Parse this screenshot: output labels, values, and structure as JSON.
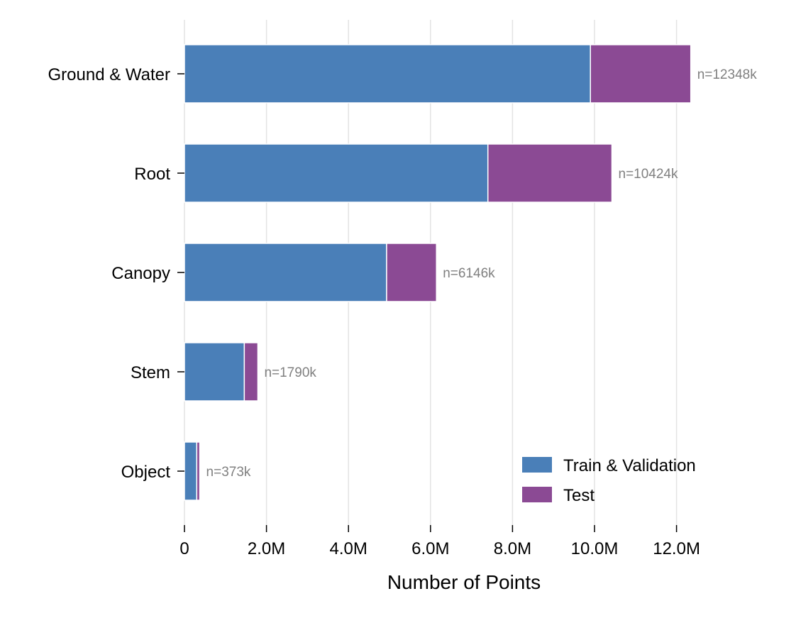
{
  "chart_data": {
    "type": "bar",
    "orientation": "horizontal",
    "stacked": true,
    "title": "",
    "xlabel": "Number of Points",
    "ylabel": "",
    "xlim": [
      0,
      12800000
    ],
    "grid": "vertical",
    "categories": [
      "Ground & Water",
      "Root",
      "Canopy",
      "Stem",
      "Object"
    ],
    "series": [
      {
        "name": "Train & Validation",
        "color": "#4a7fb8",
        "values": [
          9900000,
          7400000,
          4930000,
          1460000,
          300000
        ]
      },
      {
        "name": "Test",
        "color": "#8b4a94",
        "values": [
          2448000,
          3024000,
          1216000,
          330000,
          73000
        ]
      }
    ],
    "totals_labels": [
      "n=12348k",
      "n=10424k",
      "n=6146k",
      "n=1790k",
      "n=373k"
    ],
    "xticks": [
      {
        "value": 0,
        "label": "0"
      },
      {
        "value": 2000000,
        "label": "2.0M"
      },
      {
        "value": 4000000,
        "label": "4.0M"
      },
      {
        "value": 6000000,
        "label": "6.0M"
      },
      {
        "value": 8000000,
        "label": "8.0M"
      },
      {
        "value": 10000000,
        "label": "10.0M"
      },
      {
        "value": 12000000,
        "label": "12.0M"
      }
    ],
    "legend": {
      "position": "bottom-right",
      "entries": [
        "Train & Validation",
        "Test"
      ]
    }
  }
}
